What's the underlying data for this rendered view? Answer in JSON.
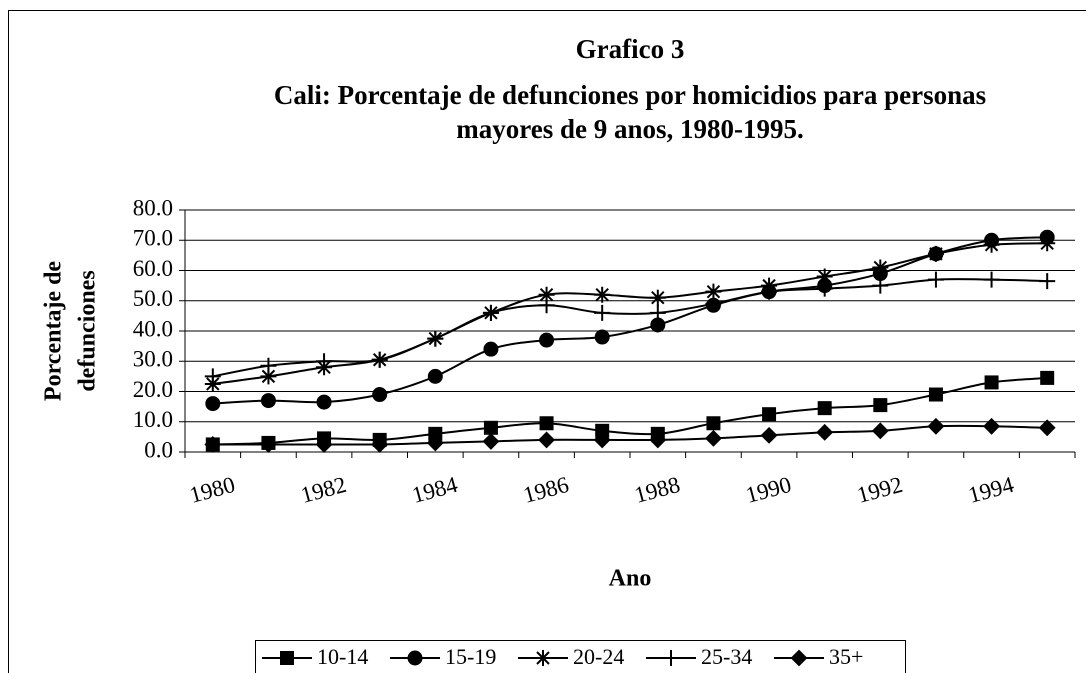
{
  "chart_data": {
    "type": "line",
    "title": [
      "Grafico 3",
      "Cali: Porcentaje de defunciones por homicidios para personas",
      "mayores de 9 anos, 1980-1995."
    ],
    "x_label": "Ano",
    "y_label": [
      "Porcentaje de",
      "defunciones"
    ],
    "categories": [
      "1980",
      null,
      "1982",
      null,
      "1984",
      null,
      "1986",
      null,
      "1988",
      null,
      "1990",
      null,
      "1992",
      null,
      "1994",
      null
    ],
    "ylim": [
      0,
      80
    ],
    "yticks": [
      {
        "value": 0,
        "label": "0.0"
      },
      {
        "value": 10,
        "label": "10.0"
      },
      {
        "value": 20,
        "label": "20.0"
      },
      {
        "value": 30,
        "label": "30.0"
      },
      {
        "value": 40,
        "label": "40.0"
      },
      {
        "value": 50,
        "label": "50.0"
      },
      {
        "value": 60,
        "label": "60.0"
      },
      {
        "value": 70,
        "label": "70.0"
      },
      {
        "value": 80,
        "label": "80.0"
      }
    ],
    "grid": true,
    "legend": "bottom",
    "series": [
      {
        "name": "10-14",
        "color": "#000000",
        "marker": "square",
        "values": [
          2.5,
          3,
          4.5,
          4,
          6,
          8,
          9.5,
          7,
          6,
          9.5,
          12.5,
          14.5,
          15.5,
          19,
          23,
          24.5
        ]
      },
      {
        "name": "15-19",
        "color": "#000000",
        "marker": "circle",
        "values": [
          16,
          17,
          16.5,
          19,
          25,
          34,
          37,
          38,
          42,
          48.5,
          53,
          55,
          59,
          65.5,
          70,
          71
        ]
      },
      {
        "name": "20-24",
        "color": "#000000",
        "marker": "asterisk",
        "values": [
          22.5,
          25,
          28,
          30.5,
          37.5,
          46,
          52,
          52,
          51,
          53,
          55,
          58,
          61,
          65.5,
          68.5,
          69
        ]
      },
      {
        "name": "25-34",
        "color": "#000000",
        "marker": "plus",
        "values": [
          25,
          28.5,
          30,
          30.5,
          37.5,
          46,
          48.5,
          46,
          46,
          49,
          53,
          54,
          55,
          57,
          57,
          56.5
        ]
      },
      {
        "name": "35+",
        "color": "#000000",
        "marker": "diamond",
        "values": [
          2.5,
          2.5,
          2.5,
          2.5,
          3,
          3.5,
          4,
          4,
          4,
          4.5,
          5.5,
          6.5,
          7,
          8.5,
          8.5,
          8
        ]
      }
    ]
  }
}
